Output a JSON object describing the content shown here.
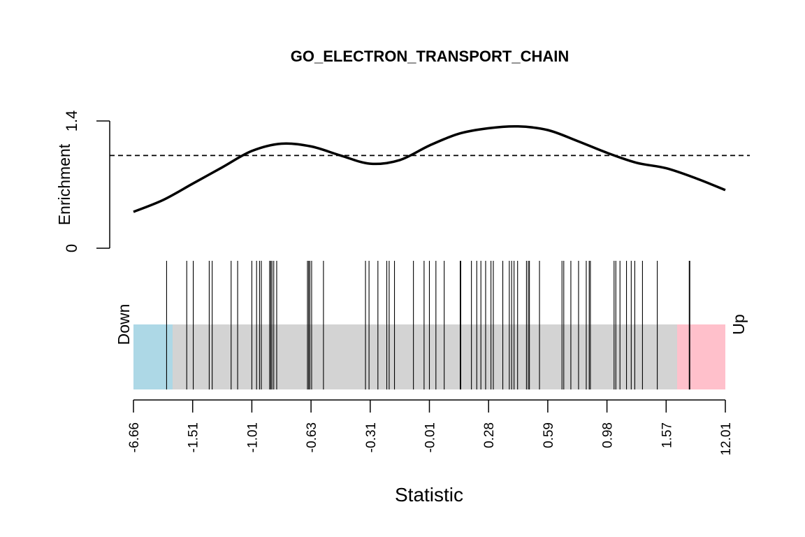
{
  "chart_data": {
    "type": "barcode-enrichment",
    "title": "GO_ELECTRON_TRANSPORT_CHAIN",
    "xlabel": "Statistic",
    "ylabel": "Enrichment",
    "y_ticks": [
      "0",
      "1.4"
    ],
    "ylim": [
      0,
      1.4
    ],
    "x_ticks": [
      "-6.66",
      "-1.51",
      "-1.01",
      "-0.63",
      "-0.31",
      "-0.01",
      "0.28",
      "0.59",
      "0.98",
      "1.57",
      "12.01"
    ],
    "region_down_label": "Down",
    "region_up_label": "Up",
    "colors": {
      "down": "#ADD8E6",
      "middle": "#D3D3D3",
      "up": "#FFC0CB",
      "curve": "#000000",
      "barcode": "#000000"
    },
    "reference_line": 1.02,
    "enrichment_curve": {
      "rank_fraction": [
        0.0,
        0.05,
        0.1,
        0.15,
        0.2,
        0.25,
        0.3,
        0.35,
        0.4,
        0.45,
        0.5,
        0.55,
        0.6,
        0.65,
        0.7,
        0.75,
        0.8,
        0.85,
        0.9,
        0.95,
        1.0
      ],
      "enrichment": [
        0.4,
        0.53,
        0.71,
        0.89,
        1.07,
        1.15,
        1.12,
        1.02,
        0.93,
        0.97,
        1.13,
        1.26,
        1.32,
        1.34,
        1.3,
        1.18,
        1.05,
        0.94,
        0.88,
        0.77,
        0.64
      ]
    },
    "barcode_rank_fraction": [
      0.056,
      0.09,
      0.101,
      0.128,
      0.133,
      0.165,
      0.176,
      0.2,
      0.208,
      0.213,
      0.216,
      0.23,
      0.232,
      0.234,
      0.237,
      0.242,
      0.294,
      0.296,
      0.298,
      0.301,
      0.321,
      0.392,
      0.398,
      0.413,
      0.428,
      0.432,
      0.441,
      0.473,
      0.491,
      0.5,
      0.511,
      0.525,
      0.552,
      0.553,
      0.571,
      0.58,
      0.587,
      0.595,
      0.604,
      0.608,
      0.624,
      0.635,
      0.639,
      0.643,
      0.649,
      0.664,
      0.667,
      0.669,
      0.686,
      0.724,
      0.727,
      0.739,
      0.752,
      0.765,
      0.77,
      0.772,
      0.812,
      0.815,
      0.822,
      0.833,
      0.841,
      0.847,
      0.86,
      0.885,
      0.94,
      0.939
    ]
  }
}
